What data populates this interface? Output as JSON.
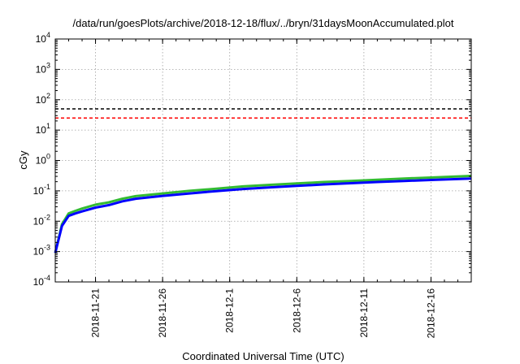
{
  "chart_data": {
    "type": "line",
    "title": "/data/run/goesPlots/archive/2018-12-18/flux/../bryn/31daysMoonAccumulated.plot",
    "xlabel": "Coordinated Universal Time (UTC)",
    "ylabel": "cGy",
    "y_scale": "log",
    "ylim": [
      0.0001,
      10000
    ],
    "y_ticks": [
      {
        "value": 0.0001,
        "base": "10",
        "exp": "-4"
      },
      {
        "value": 0.001,
        "base": "10",
        "exp": "-3"
      },
      {
        "value": 0.01,
        "base": "10",
        "exp": "-2"
      },
      {
        "value": 0.1,
        "base": "10",
        "exp": "-1"
      },
      {
        "value": 1,
        "base": "10",
        "exp": "0"
      },
      {
        "value": 10,
        "base": "10",
        "exp": "1"
      },
      {
        "value": 100,
        "base": "10",
        "exp": "2"
      },
      {
        "value": 1000,
        "base": "10",
        "exp": "3"
      },
      {
        "value": 10000,
        "base": "10",
        "exp": "4"
      }
    ],
    "xlim": [
      "2018-11-18",
      "2018-12-19"
    ],
    "x_ticks": [
      "2018-11-21",
      "2018-11-26",
      "2018-12-1",
      "2018-12-6",
      "2018-12-11",
      "2018-12-16"
    ],
    "grid": true,
    "thresholds": [
      {
        "value": 50,
        "color": "#000000"
      },
      {
        "value": 25,
        "color": "#ff0000"
      }
    ],
    "series": [
      {
        "color": "#33bb33",
        "x": [
          "2018-11-18",
          "2018-11-18T12:00",
          "2018-11-19",
          "2018-11-19T12:00",
          "2018-11-20",
          "2018-11-21",
          "2018-11-22",
          "2018-11-23",
          "2018-11-24",
          "2018-11-26",
          "2018-11-28",
          "2018-11-30",
          "2018-12-02",
          "2018-12-04",
          "2018-12-06",
          "2018-12-08",
          "2018-12-10",
          "2018-12-12",
          "2018-12-14",
          "2018-12-16",
          "2018-12-19"
        ],
        "y": [
          0.0009,
          0.008,
          0.018,
          0.022,
          0.026,
          0.035,
          0.042,
          0.055,
          0.067,
          0.082,
          0.1,
          0.118,
          0.14,
          0.158,
          0.175,
          0.195,
          0.212,
          0.232,
          0.255,
          0.275,
          0.31
        ]
      },
      {
        "color": "#0000ff",
        "x": [
          "2018-11-18",
          "2018-11-18T12:00",
          "2018-11-19",
          "2018-11-19T12:00",
          "2018-11-20",
          "2018-11-21",
          "2018-11-22",
          "2018-11-23",
          "2018-11-24",
          "2018-11-26",
          "2018-11-28",
          "2018-11-30",
          "2018-12-02",
          "2018-12-04",
          "2018-12-06",
          "2018-12-08",
          "2018-12-10",
          "2018-12-12",
          "2018-12-14",
          "2018-12-16",
          "2018-12-19"
        ],
        "y": [
          0.0009,
          0.007,
          0.015,
          0.018,
          0.021,
          0.028,
          0.034,
          0.045,
          0.055,
          0.068,
          0.082,
          0.098,
          0.115,
          0.13,
          0.145,
          0.162,
          0.178,
          0.195,
          0.212,
          0.228,
          0.255
        ]
      }
    ]
  }
}
